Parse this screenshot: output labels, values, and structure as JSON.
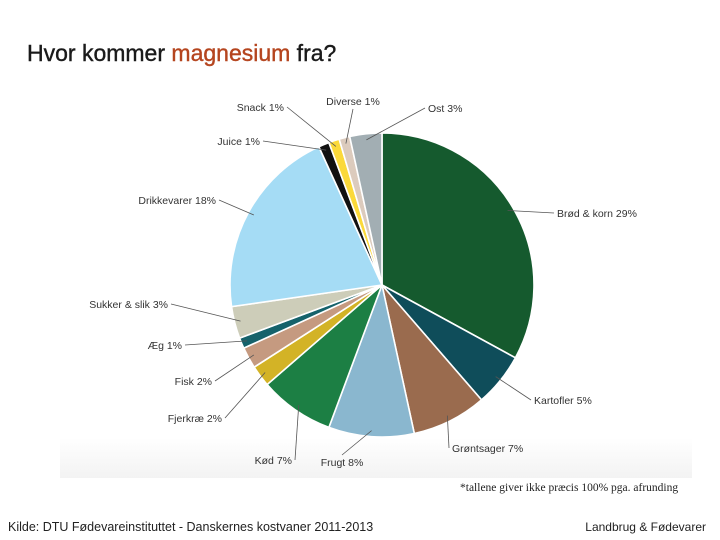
{
  "title": {
    "prefix": "Hvor kommer ",
    "highlight": "magnesium",
    "suffix": " fra?"
  },
  "colors": {
    "title_highlight": "#b5451f"
  },
  "footnote": "*tallene giver ikke præcis 100% pga. afrunding",
  "source": "Kilde: DTU Fødevareinstituttet - Danskernes kostvaner 2011-2013",
  "brand": "Landbrug & Fødevarer",
  "chart_data": {
    "type": "pie",
    "unit": "%",
    "slices": [
      {
        "label": "Brød & korn 29%",
        "value": 29,
        "color": "#155a2e"
      },
      {
        "label": "Kartofler 5%",
        "value": 5,
        "color": "#0f4d5a"
      },
      {
        "label": "Grøntsager 7%",
        "value": 7,
        "color": "#9a6b4e"
      },
      {
        "label": "Frugt 8%",
        "value": 8,
        "color": "#8ab7cf"
      },
      {
        "label": "Kød 7%",
        "value": 7,
        "color": "#1c7f44"
      },
      {
        "label": "Fjerkræ 2%",
        "value": 2,
        "color": "#d3b326"
      },
      {
        "label": "Fisk 2%",
        "value": 2,
        "color": "#c59a80"
      },
      {
        "label": "Æg 1%",
        "value": 1,
        "color": "#15626b"
      },
      {
        "label": "Sukker & slik 3%",
        "value": 3,
        "color": "#cdcdb9"
      },
      {
        "label": "Drikkevarer 18%",
        "value": 18,
        "color": "#a5dcf5"
      },
      {
        "label": "Juice 1%",
        "value": 1,
        "color": "#111111"
      },
      {
        "label": "Snack 1%",
        "value": 1,
        "color": "#fbd93a"
      },
      {
        "label": "Diverse 1%",
        "value": 1,
        "color": "#dccbbd"
      },
      {
        "label": "Ost 3%",
        "value": 3,
        "color": "#a2aeb3"
      }
    ]
  }
}
